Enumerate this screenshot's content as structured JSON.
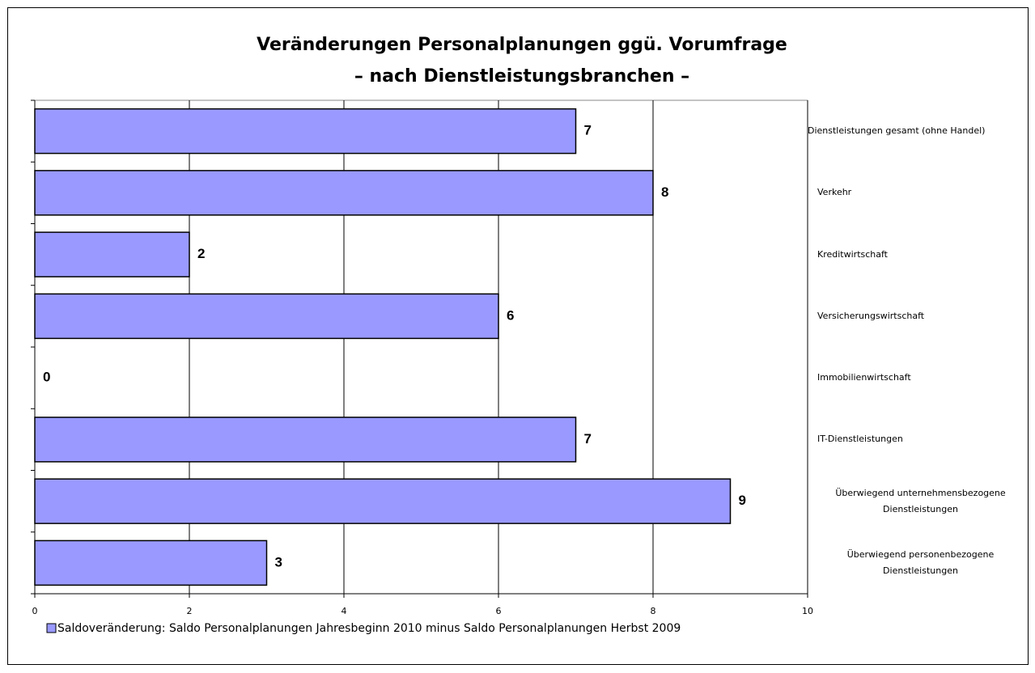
{
  "chart_data": {
    "type": "barh",
    "title": [
      "Veränderungen Personalplanungen ggü. Vorumfrage",
      "– nach Dienstleistungsbranchen –"
    ],
    "categories": [
      "Dienstleistungen gesamt (ohne Handel)",
      "Verkehr",
      "Kreditwirtschaft",
      "Versicherungswirtschaft",
      "Immobilienwirtschaft",
      "IT-Dienstleistungen",
      "Überwiegend unternehmensbezogene Dienstleistungen",
      "Überwiegend personenbezogene Dienstleistungen"
    ],
    "series": [
      {
        "name": "Saldoveränderung: Saldo Personalplanungen Jahresbeginn 2010 minus Saldo Personalplanungen Herbst 2009",
        "color": "#9999ff",
        "values": [
          7,
          8,
          2,
          6,
          0,
          7,
          9,
          3
        ]
      }
    ],
    "xlim": [
      0,
      10
    ],
    "xticks": [
      0,
      2,
      4,
      6,
      8,
      10
    ],
    "grid": true,
    "legend": "bottom"
  }
}
